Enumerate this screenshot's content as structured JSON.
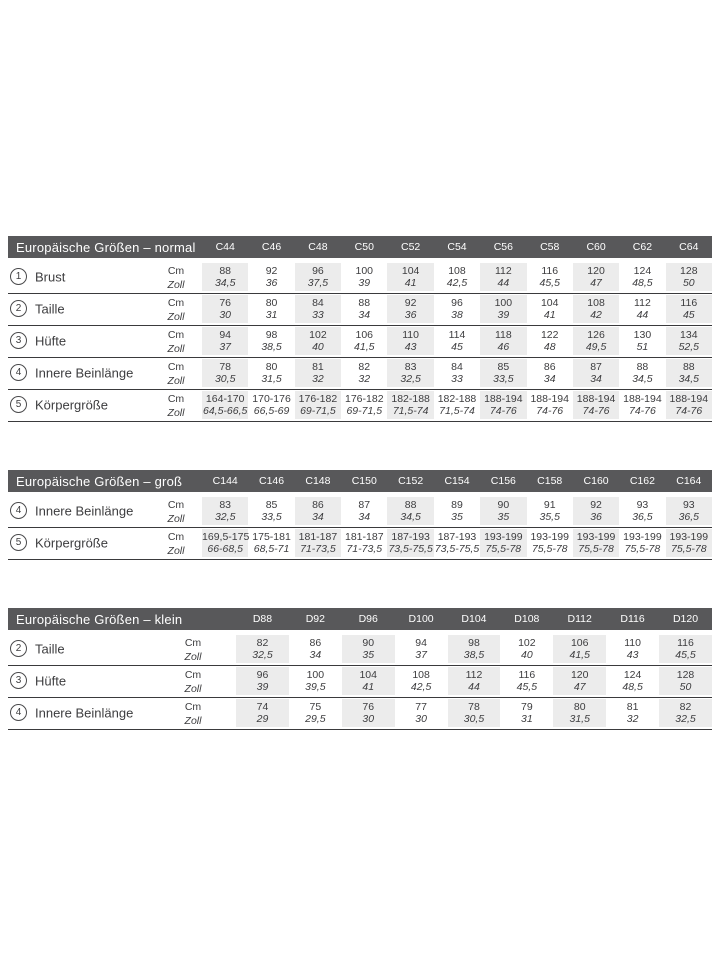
{
  "colors": {
    "header_bg": "#58585a",
    "header_text": "#ffffff",
    "column_shade": "#ececec",
    "rule_line": "#3a3a3c",
    "text": "#3d3d3f"
  },
  "units": {
    "cm": "Cm",
    "zoll": "Zoll"
  },
  "tables": [
    {
      "title": "Europäische Größen – normal",
      "columns": [
        "C44",
        "C46",
        "C48",
        "C50",
        "C52",
        "C54",
        "C56",
        "C58",
        "C60",
        "C62",
        "C64"
      ],
      "rows": [
        {
          "num": "1",
          "label": "Brust",
          "cm": [
            "88",
            "92",
            "96",
            "100",
            "104",
            "108",
            "112",
            "116",
            "120",
            "124",
            "128"
          ],
          "zoll": [
            "34,5",
            "36",
            "37,5",
            "39",
            "41",
            "42,5",
            "44",
            "45,5",
            "47",
            "48,5",
            "50"
          ]
        },
        {
          "num": "2",
          "label": "Taille",
          "cm": [
            "76",
            "80",
            "84",
            "88",
            "92",
            "96",
            "100",
            "104",
            "108",
            "112",
            "116"
          ],
          "zoll": [
            "30",
            "31",
            "33",
            "34",
            "36",
            "38",
            "39",
            "41",
            "42",
            "44",
            "45"
          ]
        },
        {
          "num": "3",
          "label": "Hüfte",
          "cm": [
            "94",
            "98",
            "102",
            "106",
            "110",
            "114",
            "118",
            "122",
            "126",
            "130",
            "134"
          ],
          "zoll": [
            "37",
            "38,5",
            "40",
            "41,5",
            "43",
            "45",
            "46",
            "48",
            "49,5",
            "51",
            "52,5"
          ]
        },
        {
          "num": "4",
          "label": "Innere Beinlänge",
          "cm": [
            "78",
            "80",
            "81",
            "82",
            "83",
            "84",
            "85",
            "86",
            "87",
            "88",
            "88"
          ],
          "zoll": [
            "30,5",
            "31,5",
            "32",
            "32",
            "32,5",
            "33",
            "33,5",
            "34",
            "34",
            "34,5",
            "34,5"
          ]
        },
        {
          "num": "5",
          "label": "Körpergröße",
          "cm": [
            "164-170",
            "170-176",
            "176-182",
            "176-182",
            "182-188",
            "182-188",
            "188-194",
            "188-194",
            "188-194",
            "188-194",
            "188-194"
          ],
          "zoll": [
            "64,5-66,5",
            "66,5-69",
            "69-71,5",
            "69-71,5",
            "71,5-74",
            "71,5-74",
            "74-76",
            "74-76",
            "74-76",
            "74-76",
            "74-76"
          ]
        }
      ]
    },
    {
      "title": "Europäische Größen – groß",
      "columns": [
        "C144",
        "C146",
        "C148",
        "C150",
        "C152",
        "C154",
        "C156",
        "C158",
        "C160",
        "C162",
        "C164"
      ],
      "rows": [
        {
          "num": "4",
          "label": "Innere Beinlänge",
          "cm": [
            "83",
            "85",
            "86",
            "87",
            "88",
            "89",
            "90",
            "91",
            "92",
            "93",
            "93"
          ],
          "zoll": [
            "32,5",
            "33,5",
            "34",
            "34",
            "34,5",
            "35",
            "35",
            "35,5",
            "36",
            "36,5",
            "36,5"
          ]
        },
        {
          "num": "5",
          "label": "Körpergröße",
          "cm": [
            "169,5-175",
            "175-181",
            "181-187",
            "181-187",
            "187-193",
            "187-193",
            "193-199",
            "193-199",
            "193-199",
            "193-199",
            "193-199"
          ],
          "zoll": [
            "66-68,5",
            "68,5-71",
            "71-73,5",
            "71-73,5",
            "73,5-75,5",
            "73,5-75,5",
            "75,5-78",
            "75,5-78",
            "75,5-78",
            "75,5-78",
            "75,5-78"
          ]
        }
      ]
    },
    {
      "title": "Europäische Größen – klein",
      "columns": [
        "D88",
        "D92",
        "D96",
        "D100",
        "D104",
        "D108",
        "D112",
        "D116",
        "D120"
      ],
      "rows": [
        {
          "num": "2",
          "label": "Taille",
          "cm": [
            "82",
            "86",
            "90",
            "94",
            "98",
            "102",
            "106",
            "110",
            "116"
          ],
          "zoll": [
            "32,5",
            "34",
            "35",
            "37",
            "38,5",
            "40",
            "41,5",
            "43",
            "45,5"
          ]
        },
        {
          "num": "3",
          "label": "Hüfte",
          "cm": [
            "96",
            "100",
            "104",
            "108",
            "112",
            "116",
            "120",
            "124",
            "128"
          ],
          "zoll": [
            "39",
            "39,5",
            "41",
            "42,5",
            "44",
            "45,5",
            "47",
            "48,5",
            "50"
          ]
        },
        {
          "num": "4",
          "label": "Innere Beinlänge",
          "cm": [
            "74",
            "75",
            "76",
            "77",
            "78",
            "79",
            "80",
            "81",
            "82"
          ],
          "zoll": [
            "29",
            "29,5",
            "30",
            "30",
            "30,5",
            "31",
            "31,5",
            "32",
            "32,5"
          ]
        }
      ]
    }
  ]
}
